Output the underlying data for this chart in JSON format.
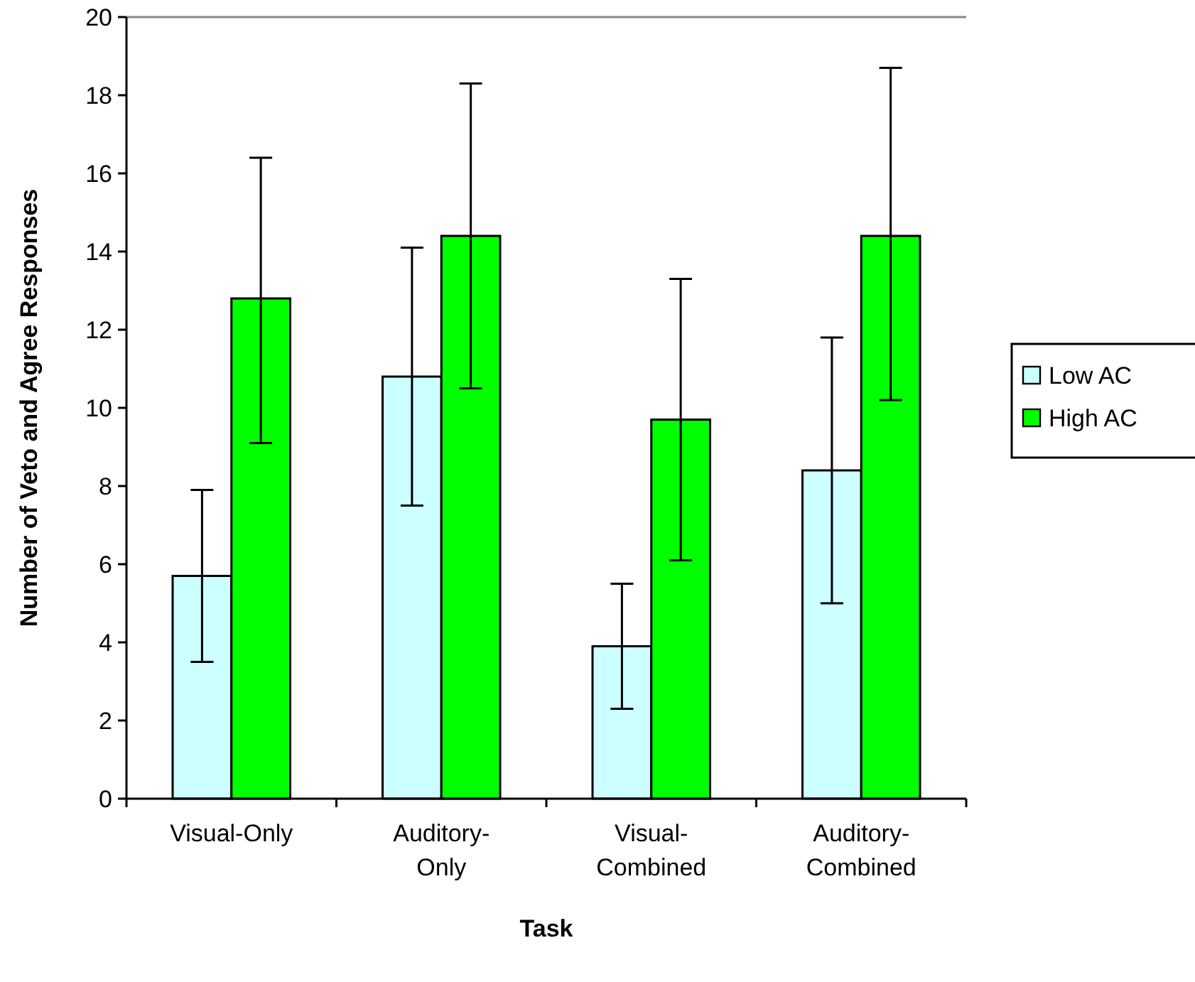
{
  "chart_data": {
    "type": "bar",
    "xlabel": "Task",
    "ylabel": "Number of Veto and Agree Responses",
    "categories": [
      "Visual-Only",
      "Auditory-\nOnly",
      "Visual-\nCombined",
      "Auditory-\nCombined"
    ],
    "series": [
      {
        "name": "Low AC",
        "color": "#ccffff",
        "values": [
          5.7,
          10.8,
          3.9,
          8.4
        ],
        "errors": [
          [
            3.5,
            7.9
          ],
          [
            7.5,
            14.1
          ],
          [
            2.3,
            5.5
          ],
          [
            5.0,
            11.8
          ]
        ]
      },
      {
        "name": "High AC",
        "color": "#00ff00",
        "values": [
          12.8,
          14.4,
          9.7,
          14.4
        ],
        "errors": [
          [
            9.1,
            16.4
          ],
          [
            10.5,
            18.3
          ],
          [
            6.1,
            13.3
          ],
          [
            10.2,
            18.7
          ]
        ]
      }
    ],
    "ylim": [
      0,
      20
    ],
    "yticks": [
      0,
      2,
      4,
      6,
      8,
      10,
      12,
      14,
      16,
      18,
      20
    ],
    "grid": false,
    "legend": "right"
  }
}
